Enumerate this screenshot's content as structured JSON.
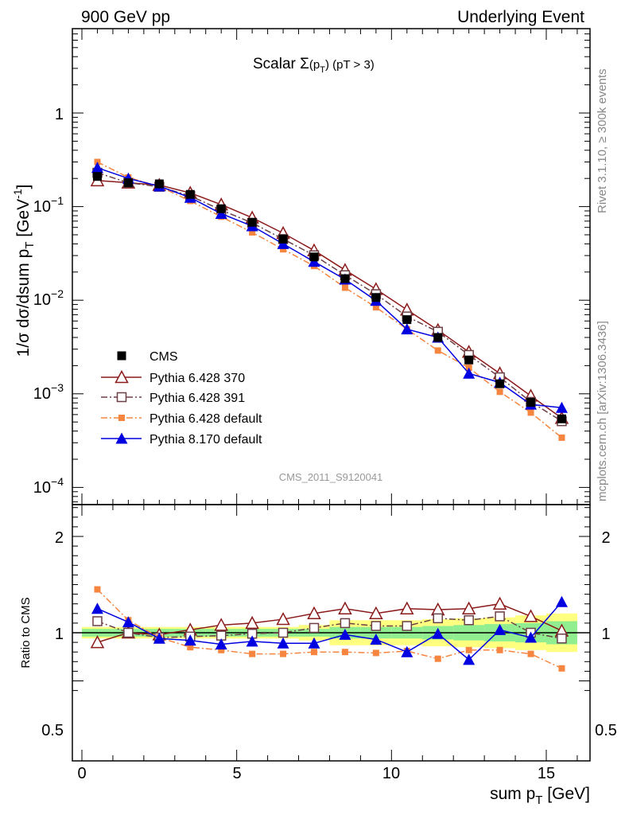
{
  "header": {
    "left": "900 GeV pp",
    "right": "Underlying Event"
  },
  "side_texts": {
    "rivet": "Rivet 3.1.10, ≥ 300k events",
    "mcplots": "mcplots.cern.ch [arXiv:1306.3436]"
  },
  "chart_data": [
    {
      "type": "scatter",
      "title": "Scalar Σ(pT) (pT > 3)",
      "ylabel": "1/σ dσ/dsum pT [GeV⁻¹]",
      "xlabel": "sum pT [GeV]",
      "yscale": "log",
      "ylim": [
        7e-05,
        5
      ],
      "xlim": [
        -0.3,
        16.3
      ],
      "watermark": "CMS_2011_S9120041",
      "ytick_labels": [
        "1",
        "10⁻¹",
        "10⁻²",
        "10⁻³",
        "10⁻⁴"
      ],
      "legend_position": "lower-left",
      "x": [
        0.5,
        1.5,
        2.5,
        3.5,
        4.5,
        5.5,
        6.5,
        7.5,
        8.5,
        9.5,
        10.5,
        11.5,
        12.5,
        13.5,
        14.5,
        15.5
      ],
      "series": [
        {
          "name": "CMS",
          "color": "#000000",
          "marker": "filled-square",
          "line": "none",
          "values": [
            0.21,
            0.18,
            0.175,
            0.135,
            0.095,
            0.068,
            0.045,
            0.029,
            0.017,
            0.0107,
            0.0062,
            0.004,
            0.0023,
            0.00128,
            0.00081,
            0.00054
          ]
        },
        {
          "name": "Pythia 6.428 370",
          "color": "#8b1a1a",
          "marker": "open-triangle",
          "line": "solid",
          "values": [
            0.19,
            0.18,
            0.17,
            0.14,
            0.105,
            0.076,
            0.052,
            0.034,
            0.021,
            0.0131,
            0.0079,
            0.0048,
            0.0028,
            0.00165,
            0.00095,
            0.00055
          ]
        },
        {
          "name": "Pythia 6.428 391",
          "color": "#7a4a50",
          "marker": "open-square",
          "line": "dashdot",
          "values": [
            0.23,
            0.18,
            0.163,
            0.13,
            0.092,
            0.067,
            0.045,
            0.0302,
            0.0185,
            0.0116,
            0.0067,
            0.0046,
            0.0026,
            0.0015,
            0.00082,
            0.00051
          ]
        },
        {
          "name": "Pythia 6.428 default",
          "color": "#f5853f",
          "marker": "filled-square-small",
          "line": "dashdot",
          "values": [
            0.3,
            0.205,
            0.164,
            0.115,
            0.078,
            0.053,
            0.035,
            0.0232,
            0.0136,
            0.0084,
            0.0049,
            0.0029,
            0.0019,
            0.00105,
            0.00063,
            0.00034
          ]
        },
        {
          "name": "Pythia 8.170 default",
          "color": "#0000e0",
          "marker": "filled-triangle",
          "line": "solid",
          "values": [
            0.26,
            0.2,
            0.165,
            0.125,
            0.084,
            0.062,
            0.04,
            0.0258,
            0.0167,
            0.0099,
            0.0049,
            0.004,
            0.00165,
            0.00132,
            0.00077,
            0.00071
          ]
        }
      ]
    },
    {
      "type": "line",
      "ylabel": "Ratio to CMS",
      "xlabel": "sum pT [GeV]",
      "ylim": [
        0.35,
        2.5
      ],
      "xlim": [
        -0.3,
        16.3
      ],
      "ytick_labels": [
        "2",
        "1",
        "0.5"
      ],
      "xtick_labels": [
        "0",
        "5",
        "10",
        "15"
      ],
      "x": [
        0.5,
        1.5,
        2.5,
        3.5,
        4.5,
        5.5,
        6.5,
        7.5,
        8.5,
        9.5,
        10.5,
        11.5,
        12.5,
        13.5,
        14.5,
        15.5
      ],
      "band_inner": [
        0.04,
        0.04,
        0.04,
        0.04,
        0.04,
        0.04,
        0.04,
        0.04,
        0.06,
        0.06,
        0.06,
        0.07,
        0.08,
        0.09,
        0.1,
        0.12
      ],
      "band_outer": [
        0.06,
        0.06,
        0.06,
        0.06,
        0.06,
        0.06,
        0.06,
        0.08,
        0.13,
        0.13,
        0.13,
        0.14,
        0.15,
        0.16,
        0.18,
        0.2
      ],
      "series": [
        {
          "name": "Pythia 6.428 370",
          "values": [
            0.9,
            1.0,
            0.98,
            1.03,
            1.08,
            1.1,
            1.14,
            1.2,
            1.25,
            1.2,
            1.25,
            1.24,
            1.25,
            1.3,
            1.17,
            1.02
          ]
        },
        {
          "name": "Pythia 6.428 391",
          "values": [
            1.12,
            1.0,
            0.95,
            0.96,
            0.97,
            0.99,
            1.0,
            1.05,
            1.1,
            1.07,
            1.07,
            1.15,
            1.13,
            1.17,
            1.0,
            0.94
          ]
        },
        {
          "name": "Pythia 6.428 default",
          "values": [
            1.45,
            1.13,
            0.95,
            0.85,
            0.82,
            0.78,
            0.78,
            0.8,
            0.8,
            0.79,
            0.81,
            0.73,
            0.82,
            0.82,
            0.78,
            0.63
          ]
        },
        {
          "name": "Pythia 8.170 default",
          "values": [
            1.25,
            1.11,
            0.94,
            0.92,
            0.88,
            0.91,
            0.89,
            0.89,
            0.98,
            0.93,
            0.8,
            0.99,
            0.72,
            1.03,
            0.95,
            1.32
          ]
        }
      ]
    }
  ]
}
